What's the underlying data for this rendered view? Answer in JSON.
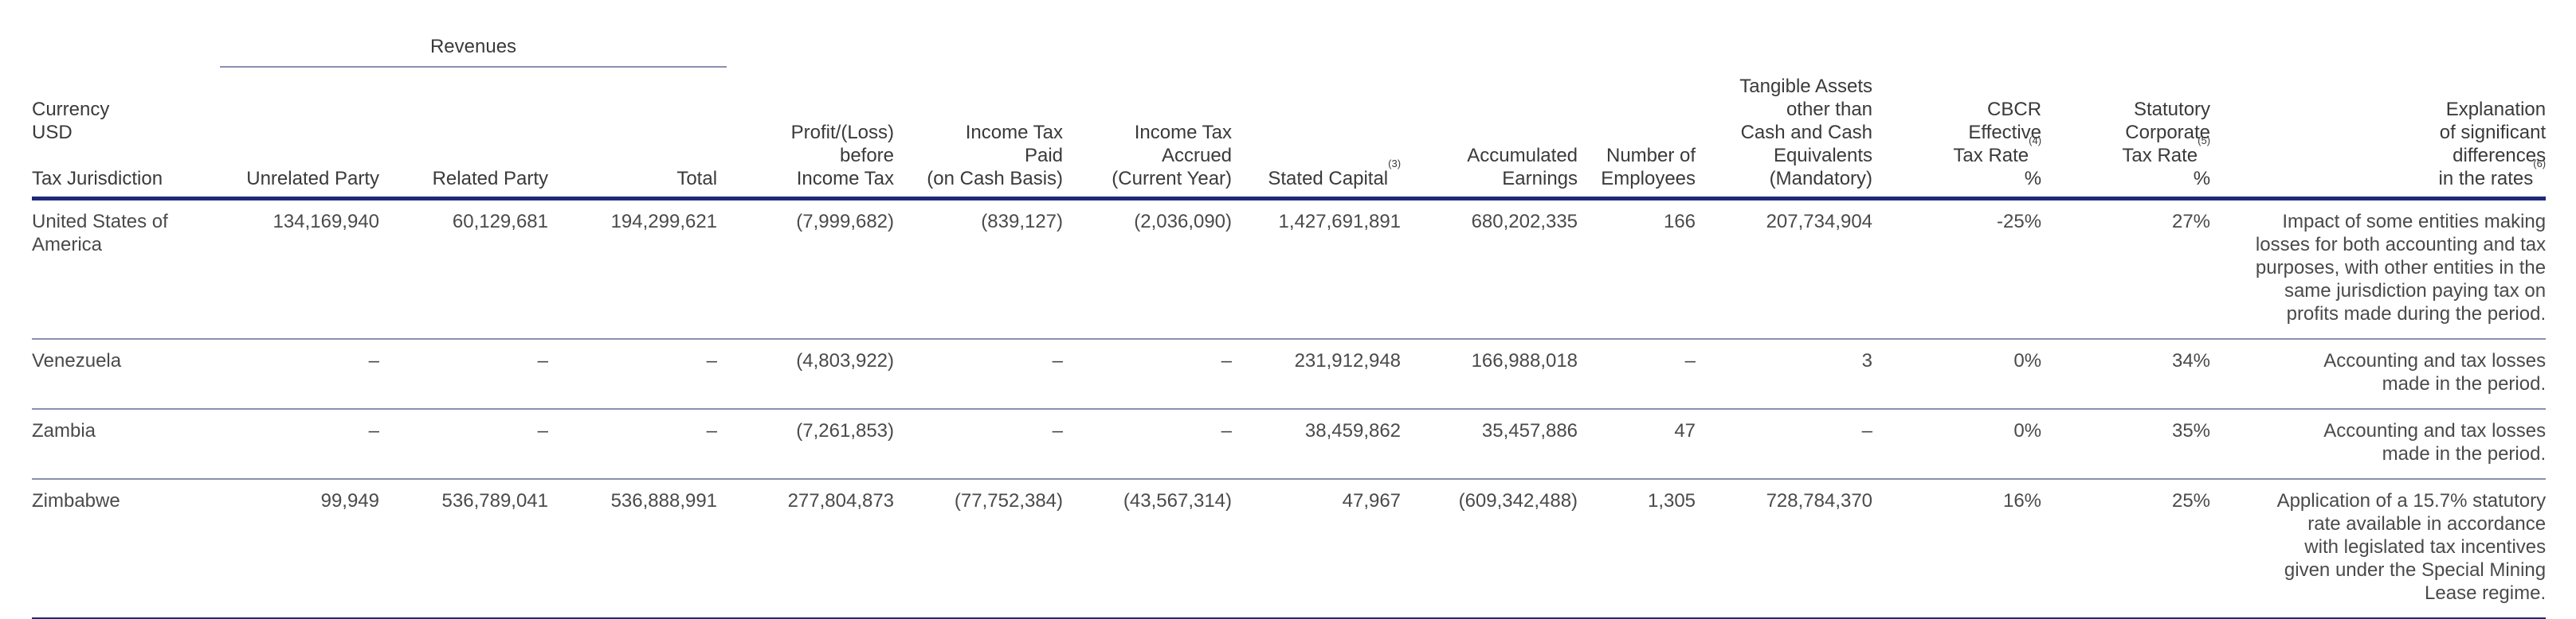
{
  "header": {
    "revenues_group": "Revenues",
    "currency_line1": "Currency",
    "currency_line2": "USD",
    "tax_jurisdiction": "Tax Jurisdiction",
    "unrelated_party": "Unrelated Party",
    "related_party": "Related Party",
    "total": "Total",
    "profit_loss": "Profit/(Loss)\nbefore\nIncome Tax",
    "tax_paid": "Income Tax\nPaid\n(on Cash Basis)",
    "tax_accrued": "Income Tax\nAccrued\n(Current Year)",
    "stated_capital": "Stated Capital",
    "stated_capital_note": "(3)",
    "accumulated_earnings": "Accumulated\nEarnings",
    "number_of_employees": "Number of\nEmployees",
    "tangible_assets": "Tangible Assets\nother than\nCash and Cash\nEquivalents\n(Mandatory)",
    "cbcr_rate_a": "CBCR\nEffective\nTax Rate",
    "cbcr_rate_note": "(4)",
    "cbcr_rate_pct": "%",
    "statutory_rate_a": "Statutory\nCorporate\nTax Rate",
    "statutory_rate_note": "(5)",
    "statutory_rate_pct": "%",
    "explanation_a": "Explanation\nof significant\ndifferences\nin the rates",
    "explanation_note": "(6)"
  },
  "rows": [
    {
      "jurisdiction": "United States of\nAmerica",
      "unrelated": "134,169,940",
      "related": "60,129,681",
      "total": "194,299,621",
      "profit": "(7,999,682)",
      "paid": "(839,127)",
      "accrued": "(2,036,090)",
      "capital": "1,427,691,891",
      "earnings": "680,202,335",
      "employees": "166",
      "tangible": "207,734,904",
      "cbcr": "-25%",
      "statutory": "27%",
      "explanation": "Impact of some entities making\nlosses for both accounting and tax\npurposes, with other entities in the\nsame jurisdiction paying tax on\nprofits made during the period."
    },
    {
      "jurisdiction": "Venezuela",
      "unrelated": "–",
      "related": "–",
      "total": "–",
      "profit": "(4,803,922)",
      "paid": "–",
      "accrued": "–",
      "capital": "231,912,948",
      "earnings": "166,988,018",
      "employees": "–",
      "tangible": "3",
      "cbcr": "0%",
      "statutory": "34%",
      "explanation": "Accounting and tax losses\nmade in the period."
    },
    {
      "jurisdiction": "Zambia",
      "unrelated": "–",
      "related": "–",
      "total": "–",
      "profit": "(7,261,853)",
      "paid": "–",
      "accrued": "–",
      "capital": "38,459,862",
      "earnings": "35,457,886",
      "employees": "47",
      "tangible": "–",
      "cbcr": "0%",
      "statutory": "35%",
      "explanation": "Accounting and tax losses\nmade in the period."
    },
    {
      "jurisdiction": "Zimbabwe",
      "unrelated": "99,949",
      "related": "536,789,041",
      "total": "536,888,991",
      "profit": "277,804,873",
      "paid": "(77,752,384)",
      "accrued": "(43,567,314)",
      "capital": "47,967",
      "earnings": "(609,342,488)",
      "employees": "1,305",
      "tangible": "728,784,370",
      "cbcr": "16%",
      "statutory": "25%",
      "explanation": "Application of a 15.7% statutory\nrate available in accordance\nwith legislated tax incentives\ngiven under the Special Mining\nLease regime."
    }
  ]
}
